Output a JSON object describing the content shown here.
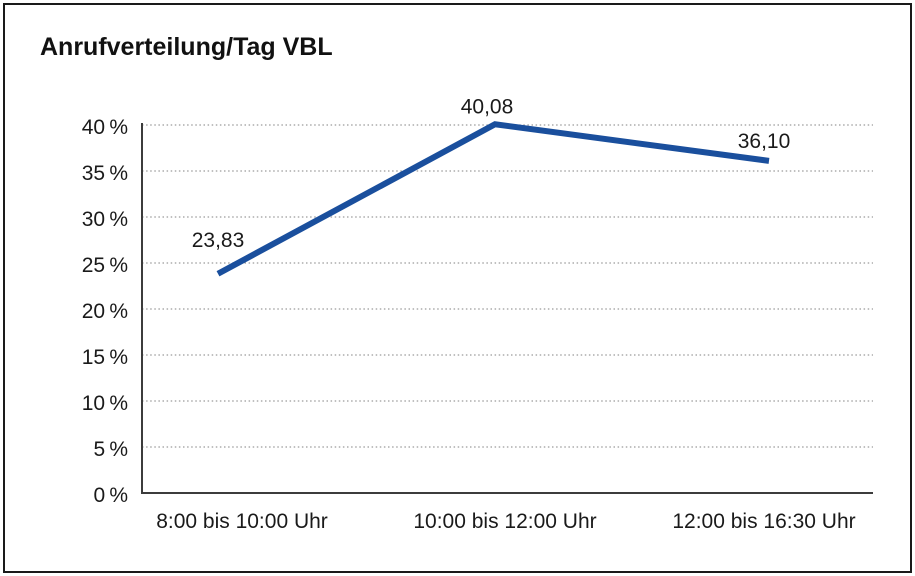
{
  "window": {
    "background": "#ffffff",
    "border_color": "#1a1a1a"
  },
  "chart_data": {
    "type": "line",
    "title": "Anrufverteilung/Tag VBL",
    "categories": [
      "8:00 bis 10:00 Uhr",
      "10:00 bis 12:00 Uhr",
      "12:00 bis 16:30 Uhr"
    ],
    "series": [
      {
        "name": "Anrufverteilung/Tag VBL",
        "values": [
          23.83,
          40.08,
          36.1
        ]
      }
    ],
    "point_labels": [
      "23,83",
      "40,08",
      "36,10"
    ],
    "xlabel": "",
    "ylabel": "",
    "ylim": [
      0,
      40
    ],
    "ytick_step": 5,
    "yticks": [
      {
        "value": 0,
        "label": "0 %"
      },
      {
        "value": 5,
        "label": "5 %"
      },
      {
        "value": 10,
        "label": "10 %"
      },
      {
        "value": 15,
        "label": "15 %"
      },
      {
        "value": 20,
        "label": "20 %"
      },
      {
        "value": 25,
        "label": "25 %"
      },
      {
        "value": 30,
        "label": "30 %"
      },
      {
        "value": 35,
        "label": "35 %"
      },
      {
        "value": 40,
        "label": "40 %"
      }
    ],
    "grid": "horizontal-dotted",
    "legend_position": "none",
    "colors": {
      "line": "#1a4f9d",
      "grid": "#9a9a9a",
      "axis": "#3c3c3c",
      "text": "#1a1a1a"
    }
  }
}
